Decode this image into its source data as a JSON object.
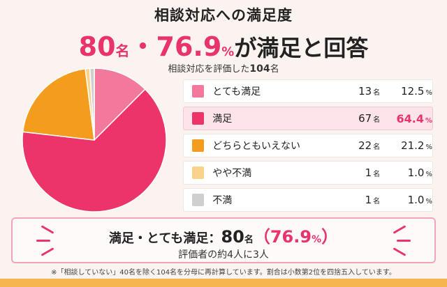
{
  "header": {
    "title": "相談対応への満足度",
    "headline_count": "80",
    "headline_count_unit": "名",
    "headline_sep": "・",
    "headline_pct": "76.9",
    "headline_pct_unit": "%",
    "headline_rest": "が満足と回答",
    "subtitle_prefix": "相談対応を評価した",
    "subtitle_num": "104",
    "subtitle_suffix": "名"
  },
  "chart_data": {
    "type": "pie",
    "categories": [
      "とても満足",
      "満足",
      "どちらともいえない",
      "やや不満",
      "不満"
    ],
    "counts": [
      13,
      67,
      22,
      1,
      1
    ],
    "values": [
      12.5,
      64.4,
      21.2,
      1.0,
      1.0
    ],
    "count_unit": "名",
    "value_unit": "%",
    "colors": [
      "#f2789c",
      "#ec3469",
      "#f49c1e",
      "#fbd28c",
      "#cfcfcf"
    ],
    "display": [
      {
        "label": "とても満足",
        "count": "13",
        "pct": "12.5"
      },
      {
        "label": "満足",
        "count": "67",
        "pct": "64.4"
      },
      {
        "label": "どちらともいえない",
        "count": "22",
        "pct": "21.2"
      },
      {
        "label": "やや不満",
        "count": "1",
        "pct": "1.0"
      },
      {
        "label": "不満",
        "count": "1",
        "pct": "1.0"
      }
    ],
    "highlight_index": 1
  },
  "summary": {
    "label": "満足・とても満足：",
    "count": "80",
    "count_unit": "名",
    "paren_open": "（",
    "pct": "76.9",
    "pct_unit": "%",
    "paren_close": "）",
    "sub": "評価者の約4人に3人"
  },
  "note": "※「相談していない」40名を除く104名を分母に再計算しています。割合は小数第2位を四捨五入しています。"
}
